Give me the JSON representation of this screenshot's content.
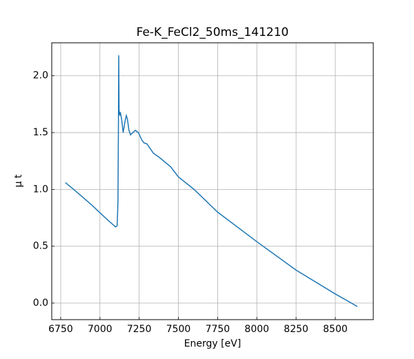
{
  "chart_data": {
    "type": "line",
    "title": "Fe-K_FeCl2_50ms_141210",
    "x_label": "Energy [eV]",
    "y_label": "μ t",
    "x": [
      6780,
      6850,
      6950,
      7050,
      7100,
      7110,
      7115,
      7118,
      7120,
      7122,
      7126,
      7130,
      7140,
      7148,
      7160,
      7168,
      7175,
      7185,
      7195,
      7210,
      7225,
      7245,
      7265,
      7280,
      7300,
      7320,
      7340,
      7380,
      7450,
      7500,
      7600,
      7750,
      8000,
      8250,
      8500,
      8640
    ],
    "values": [
      1.06,
      0.98,
      0.86,
      0.73,
      0.67,
      0.68,
      0.9,
      1.6,
      2.18,
      1.7,
      1.65,
      1.68,
      1.6,
      1.5,
      1.6,
      1.65,
      1.62,
      1.52,
      1.48,
      1.5,
      1.52,
      1.5,
      1.44,
      1.41,
      1.4,
      1.36,
      1.32,
      1.28,
      1.2,
      1.11,
      1.0,
      0.8,
      0.54,
      0.29,
      0.08,
      -0.03
    ],
    "color": "#1f77b4",
    "xlim": [
      6693,
      8742
    ],
    "ylim": [
      -0.146,
      2.29
    ],
    "xticks": [
      6750,
      7000,
      7250,
      7500,
      7750,
      8000,
      8250,
      8500
    ],
    "yticks": [
      {
        "value": 0,
        "label": "0.0"
      },
      {
        "value": 0.5,
        "label": "0.5"
      },
      {
        "value": 1,
        "label": "1.0"
      },
      {
        "value": 1.5,
        "label": "1.5"
      },
      {
        "value": 2,
        "label": "2.0"
      }
    ],
    "grid": true
  }
}
